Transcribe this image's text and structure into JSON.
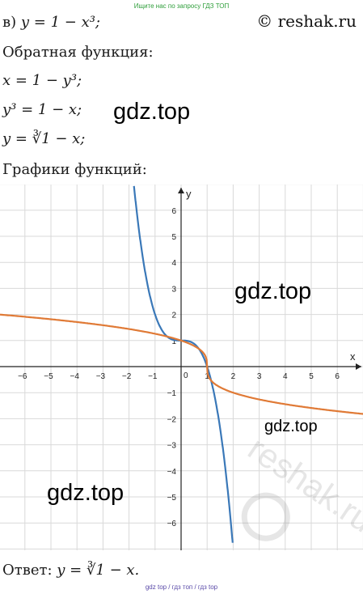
{
  "header": {
    "top_link": "Ищите нас по запросу ГДЗ ТОП",
    "site": "© reshak.ru"
  },
  "solution": {
    "problem_label": "в)",
    "given": "y = 1 − x³;",
    "inverse_heading": "Обратная функция:",
    "step1": "x = 1 − y³;",
    "step2": "y³ = 1 − x;",
    "step3": "y = ∛1 − x;",
    "graphs_heading": "Графики функций:",
    "answer_label": "Ответ:",
    "answer": "y = ∛1 − x."
  },
  "watermarks": {
    "gdz1": "gdz.top",
    "gdz2": "gdz.top",
    "gdz3": "gdz.top",
    "gdz4": "gdz.top",
    "reshak": "reshak.ru"
  },
  "footer": "gdz top / гдз топ / гдз top",
  "colors": {
    "blue_curve": "#3a78b8",
    "orange_curve": "#e07a36",
    "grid": "#d9d9d9",
    "link_green": "#2e9e3a"
  },
  "chart_data": {
    "type": "line",
    "xlabel": "x",
    "ylabel": "y",
    "xlim": [
      -7,
      7
    ],
    "ylim": [
      -7,
      7
    ],
    "x_ticks": [
      -6,
      -5,
      -4,
      -3,
      -2,
      -1,
      1,
      2,
      3,
      4,
      5,
      6
    ],
    "y_ticks": [
      -6,
      -5,
      -4,
      -3,
      -2,
      -1,
      1,
      2,
      3,
      4,
      5,
      6
    ],
    "origin_label": "0",
    "grid": true,
    "series": [
      {
        "function": "1 - x^3",
        "color": "#3a78b8",
        "x": [
          -1.81,
          -1.5,
          -1,
          -0.5,
          0,
          0.5,
          1,
          1.5,
          1.98
        ],
        "y": [
          6.93,
          4.38,
          2,
          1.13,
          1,
          0.88,
          0,
          -2.38,
          -6.76
        ]
      },
      {
        "function": "cbrt(1 - x)",
        "color": "#e07a36",
        "x": [
          -7,
          -5,
          -3,
          -1,
          0,
          0.5,
          1,
          1.5,
          3,
          5,
          7
        ],
        "y": [
          2,
          1.82,
          1.59,
          1.26,
          1,
          0.79,
          0,
          -0.79,
          -1.26,
          -1.59,
          -1.82
        ]
      }
    ]
  }
}
